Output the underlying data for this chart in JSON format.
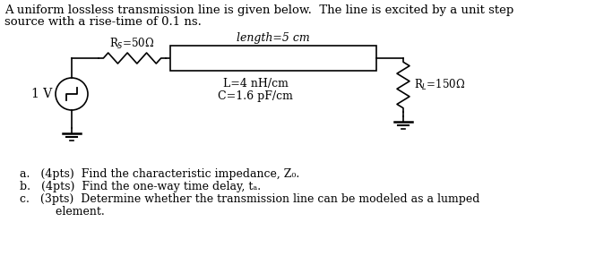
{
  "title_line1": "A uniform lossless transmission line is given below.  The line is excited by a unit step",
  "title_line2": "source with a rise-time of 0.1 ns.",
  "Rs_label": "R$_S$=50Ω",
  "length_label": "length=5 cm",
  "L_label": "L=4 nH/cm",
  "C_label": "C=1.6 pF/cm",
  "RL_label": "R$_L$=150Ω",
  "V_label": "1 V",
  "qa": "a.   (4pts)  Find the characteristic impedance, Z₀.",
  "qb": "b.   (4pts)  Find the one-way time delay, tₐ.",
  "qc": "c.   (3pts)  Determine whether the transmission line can be modeled as a lumped",
  "qc2": "          element.",
  "font_color": "#000000",
  "bg_color": "#ffffff",
  "font_size_text": 9.5,
  "font_size_labels": 9,
  "font_size_circuit": 8.5
}
